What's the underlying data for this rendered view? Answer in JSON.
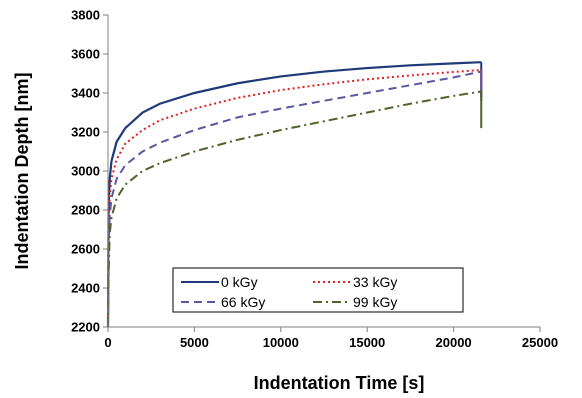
{
  "chart_data": {
    "type": "line",
    "title": "",
    "xlabel": "Indentation Time [s]",
    "ylabel": "Indentation Depth [nm]",
    "xlim": [
      0,
      25000
    ],
    "ylim": [
      2200,
      3800
    ],
    "xticks": [
      "0",
      "5000",
      "10000",
      "15000",
      "20000",
      "25000"
    ],
    "yticks": [
      "2200",
      "2400",
      "2600",
      "2800",
      "3000",
      "3200",
      "3400",
      "3600",
      "3800"
    ],
    "grid": false,
    "legend_position": "bottom-center",
    "series": [
      {
        "name": "0 kGy",
        "color": "#1f3a78",
        "style": "solid",
        "x": [
          0,
          30,
          100,
          200,
          500,
          1000,
          2000,
          3000,
          5000,
          7500,
          10000,
          12500,
          15000,
          17500,
          20000,
          21600
        ],
        "y": [
          2200,
          2800,
          2960,
          3050,
          3150,
          3220,
          3300,
          3345,
          3400,
          3450,
          3485,
          3510,
          3528,
          3542,
          3552,
          3558
        ],
        "unload": [
          3558,
          3380
        ]
      },
      {
        "name": "33 kGy",
        "color": "#e02020",
        "style": "dotted",
        "x": [
          0,
          30,
          100,
          200,
          500,
          1000,
          2000,
          3000,
          5000,
          7500,
          10000,
          12500,
          15000,
          17500,
          20000,
          21600
        ],
        "y": [
          2200,
          2700,
          2870,
          2960,
          3060,
          3140,
          3210,
          3260,
          3320,
          3375,
          3415,
          3445,
          3470,
          3490,
          3508,
          3518
        ],
        "unload": [
          3518,
          3380
        ]
      },
      {
        "name": "66 kGy",
        "color": "#5a58a0",
        "style": "dashed",
        "x": [
          0,
          30,
          100,
          200,
          500,
          1000,
          2000,
          3000,
          5000,
          7500,
          10000,
          12500,
          15000,
          17500,
          20000,
          21600
        ],
        "y": [
          2200,
          2600,
          2770,
          2860,
          2960,
          3030,
          3100,
          3145,
          3210,
          3275,
          3320,
          3360,
          3400,
          3440,
          3480,
          3510
        ],
        "unload": [
          3510,
          3360
        ]
      },
      {
        "name": "99 kGy",
        "color": "#4f6228",
        "style": "dashdot",
        "x": [
          0,
          30,
          100,
          200,
          500,
          1000,
          2000,
          3000,
          5000,
          7500,
          10000,
          12500,
          15000,
          17500,
          20000,
          21600
        ],
        "y": [
          2200,
          2450,
          2680,
          2760,
          2860,
          2930,
          3000,
          3040,
          3100,
          3160,
          3210,
          3255,
          3300,
          3345,
          3385,
          3408
        ],
        "unload": [
          3408,
          3220
        ]
      }
    ]
  }
}
